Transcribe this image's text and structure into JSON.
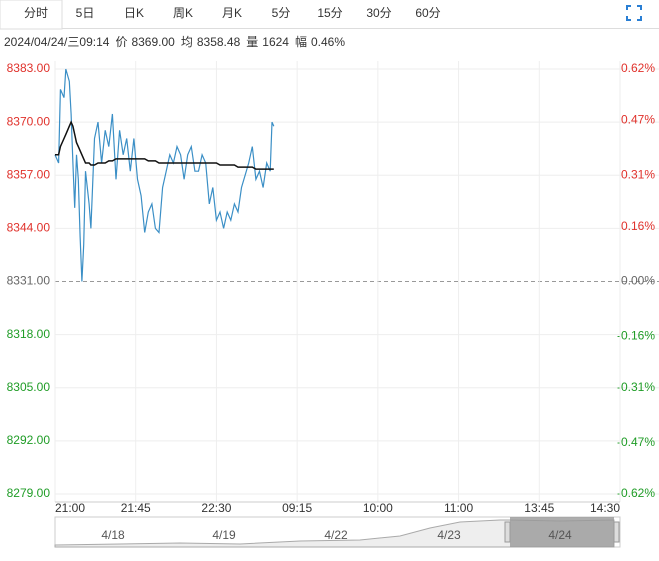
{
  "tabs": [
    "分时",
    "5日",
    "日K",
    "周K",
    "月K",
    "5分",
    "15分",
    "30分",
    "60分"
  ],
  "active_tab": 0,
  "info": {
    "time": "2024/04/24/三09:14",
    "price_label": "价",
    "price": "8369.00",
    "avg_label": "均",
    "avg": "8358.48",
    "vol_label": "量",
    "vol": "1624",
    "amp_label": "幅",
    "amp": "0.46%"
  },
  "chart_data": {
    "type": "line",
    "x": [
      0,
      2,
      3,
      5,
      6,
      8,
      9,
      10,
      11,
      12,
      13,
      14,
      15,
      16,
      17,
      19,
      20,
      22,
      24,
      26,
      28,
      30,
      32,
      34,
      36,
      38,
      40,
      42,
      44,
      46,
      48,
      50,
      52,
      54,
      56,
      58,
      60,
      62,
      64,
      66,
      68,
      70,
      72,
      74,
      76,
      78,
      80,
      82,
      84,
      86,
      88,
      90,
      92,
      94,
      96,
      98,
      100,
      102,
      104,
      106,
      108,
      110,
      112,
      114,
      116,
      118,
      120,
      121,
      122
    ],
    "series": [
      {
        "name": "价",
        "color": "#3b8fc6",
        "values": [
          8362,
          8360,
          8378,
          8376,
          8383,
          8380,
          8372,
          8360,
          8349,
          8362,
          8356,
          8342,
          8331,
          8340,
          8358,
          8350,
          8344,
          8366,
          8370,
          8360,
          8368,
          8364,
          8372,
          8356,
          8368,
          8362,
          8366,
          8358,
          8366,
          8356,
          8352,
          8343,
          8348,
          8350,
          8344,
          8343,
          8354,
          8358,
          8362,
          8360,
          8364,
          8362,
          8356,
          8362,
          8364,
          8358,
          8358,
          8362,
          8360,
          8350,
          8354,
          8346,
          8348,
          8344,
          8348,
          8346,
          8350,
          8348,
          8354,
          8357,
          8360,
          8364,
          8356,
          8358,
          8354,
          8360,
          8358,
          8370,
          8369
        ]
      },
      {
        "name": "均",
        "color": "#111111",
        "values": [
          8362,
          8362,
          8364,
          8366,
          8367,
          8369,
          8370,
          8369,
          8367,
          8365,
          8364,
          8363,
          8362,
          8361,
          8360,
          8360,
          8359.5,
          8359.5,
          8360,
          8360,
          8360,
          8360.5,
          8360.5,
          8361,
          8361,
          8361,
          8361,
          8361,
          8361,
          8361,
          8361,
          8361,
          8360.5,
          8360.5,
          8360.5,
          8360,
          8360,
          8360,
          8360,
          8360,
          8360,
          8360,
          8360,
          8360,
          8360,
          8360,
          8360,
          8360,
          8360,
          8360,
          8360,
          8360,
          8359.5,
          8359.5,
          8359.5,
          8359.5,
          8359.5,
          8359,
          8359,
          8359,
          8359,
          8359,
          8358.5,
          8358.5,
          8358.5,
          8358.5,
          8358.5,
          8358.5,
          8358.5
        ]
      }
    ],
    "xlim": [
      0,
      315
    ],
    "xticks": [
      {
        "value": 0,
        "label": "21:00"
      },
      {
        "value": 45,
        "label": "21:45"
      },
      {
        "value": 90,
        "label": "22:30"
      },
      {
        "value": 135,
        "label": "09:15"
      },
      {
        "value": 180,
        "label": "10:00"
      },
      {
        "value": 225,
        "label": "11:00"
      },
      {
        "value": 270,
        "label": "13:45"
      },
      {
        "value": 315,
        "label": "14:30"
      }
    ],
    "ylim": [
      8279,
      8383
    ],
    "yticks": [
      {
        "value": 8383,
        "label": "8383.00"
      },
      {
        "value": 8370,
        "label": "8370.00"
      },
      {
        "value": 8357,
        "label": "8357.00"
      },
      {
        "value": 8344,
        "label": "8344.00"
      },
      {
        "value": 8331,
        "label": "8331.00"
      },
      {
        "value": 8318,
        "label": "8318.00"
      },
      {
        "value": 8305,
        "label": "8305.00"
      },
      {
        "value": 8292,
        "label": "8292.00"
      },
      {
        "value": 8279,
        "label": "8279.00"
      }
    ],
    "y2lim": [
      -0.62,
      0.62
    ],
    "y2ticks": [
      {
        "value": 0.62,
        "label": "0.62%"
      },
      {
        "value": 0.47,
        "label": "0.47%"
      },
      {
        "value": 0.31,
        "label": "0.31%"
      },
      {
        "value": 0.16,
        "label": "0.16%"
      },
      {
        "value": 0,
        "label": "0.00%"
      },
      {
        "value": -0.16,
        "label": "-0.16%"
      },
      {
        "value": -0.31,
        "label": "-0.31%"
      },
      {
        "value": -0.47,
        "label": "-0.47%"
      },
      {
        "value": -0.62,
        "label": "-0.62%"
      }
    ],
    "grid": true
  },
  "navigator": {
    "labels": [
      "4/18",
      "4/19",
      "4/22",
      "4/23",
      "4/24"
    ]
  }
}
